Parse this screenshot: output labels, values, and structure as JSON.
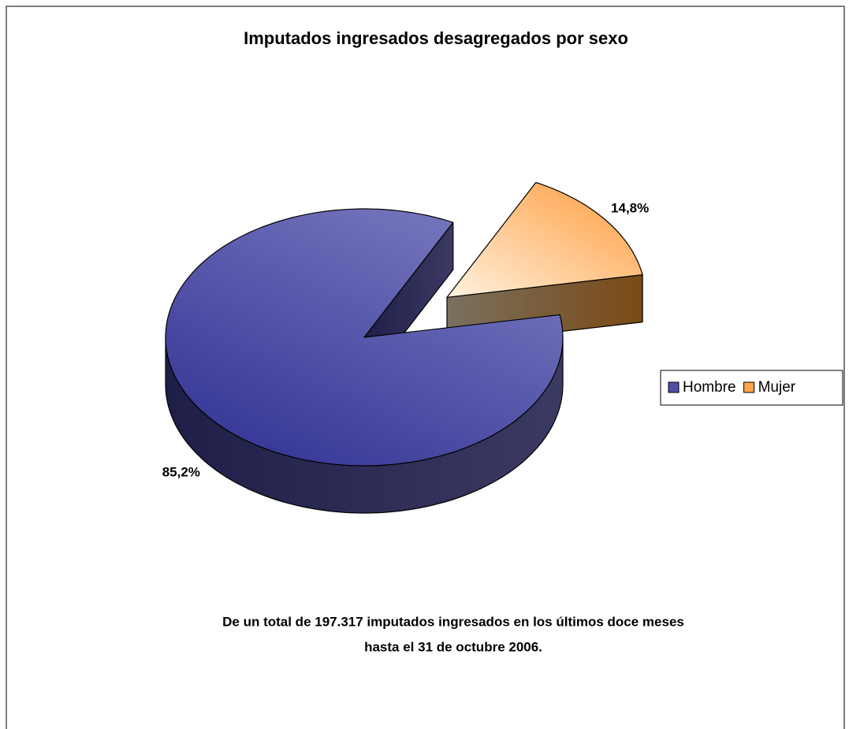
{
  "chart_data": {
    "type": "pie3d",
    "title": "Imputados ingresados desagregados por sexo",
    "categories": [
      "Hombre",
      "Mujer"
    ],
    "values": [
      85.2,
      14.8
    ],
    "value_labels": [
      "85,2%",
      "14,8%"
    ],
    "colors": [
      "#5050a8",
      "#ffa54a"
    ],
    "legend": "right",
    "annotations": [
      "De un total de 197.317 imputados ingresados en los últimos doce meses",
      "hasta el 31 de octubre 2006."
    ]
  }
}
